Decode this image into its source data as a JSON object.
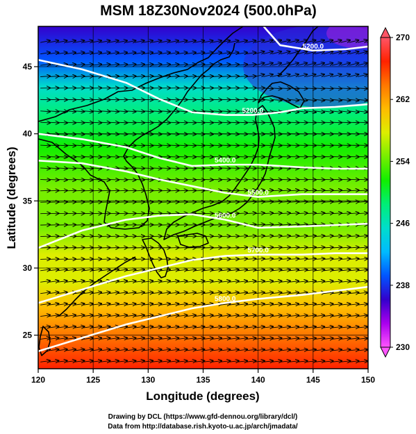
{
  "title": "MSM 18Z30Nov2024 (500.0hPa)",
  "credits": {
    "line1": "Drawing by DCL (https://www.gfd-dennou.org/library/dcl/)",
    "line2": "Data from http://database.rish.kyoto-u.ac.jp/arch/jmadata/"
  },
  "chart_data": {
    "type": "heatmap",
    "title": "MSM 18Z30Nov2024 (500.0hPa)",
    "xlabel": "Longitude (degrees)",
    "ylabel": "Latitude  (degrees)",
    "xlim": [
      120,
      150
    ],
    "ylim": [
      22.5,
      48
    ],
    "x_ticks": [
      "120",
      "125",
      "130",
      "135",
      "140",
      "145",
      "150"
    ],
    "y_ticks": [
      "25",
      "30",
      "35",
      "40",
      "45"
    ],
    "x_tick_values": [
      120,
      125,
      130,
      135,
      140,
      145,
      150
    ],
    "y_tick_values": [
      25,
      30,
      35,
      40,
      45
    ],
    "grid": true,
    "colorbar": {
      "min": 230,
      "max": 270,
      "tick_values": [
        230,
        238,
        246,
        254,
        262,
        270
      ],
      "tick_labels": [
        "230",
        "238",
        "246",
        "254",
        "262",
        "270"
      ],
      "colors": [
        "#ff55ff",
        "#aa00ee",
        "#3300cc",
        "#0055ff",
        "#00bbff",
        "#00ddcc",
        "#00ee77",
        "#11ee00",
        "#77ee00",
        "#ddee00",
        "#ffbb00",
        "#ff7700",
        "#ff2200",
        "#ff5566"
      ]
    },
    "temperature_profile": [
      {
        "lat": 22.5,
        "value": 266
      },
      {
        "lat": 25,
        "value": 264
      },
      {
        "lat": 27,
        "value": 262
      },
      {
        "lat": 29,
        "value": 259
      },
      {
        "lat": 31,
        "value": 257
      },
      {
        "lat": 33,
        "value": 255
      },
      {
        "lat": 36,
        "value": 253.5
      },
      {
        "lat": 39,
        "value": 251.5
      },
      {
        "lat": 41.5,
        "value": 248
      },
      {
        "lat": 43.5,
        "value": 244
      },
      {
        "lat": 45.5,
        "value": 240
      },
      {
        "lat": 48,
        "value": 237
      }
    ],
    "height_contours": [
      {
        "label": "5200.0",
        "points": [
          [
            140.5,
            48
          ],
          [
            142,
            46.6
          ],
          [
            145,
            46.2
          ],
          [
            148,
            46.3
          ],
          [
            150,
            46.5
          ]
        ]
      },
      {
        "label": "5200.0",
        "points": [
          [
            120,
            45.5
          ],
          [
            124,
            44.8
          ],
          [
            128,
            43.8
          ],
          [
            131,
            42.6
          ],
          [
            134,
            41.6
          ],
          [
            137,
            41.4
          ],
          [
            139.5,
            41.4
          ],
          [
            142,
            41.6
          ],
          [
            144,
            41.9
          ],
          [
            147,
            42.0
          ],
          [
            150,
            42.2
          ]
        ]
      },
      {
        "label": "5400.0",
        "points": [
          [
            120,
            40.0
          ],
          [
            124,
            39.6
          ],
          [
            128,
            39.0
          ],
          [
            131,
            38.2
          ],
          [
            134,
            37.6
          ],
          [
            137,
            37.7
          ],
          [
            140,
            37.7
          ],
          [
            144,
            37.5
          ],
          [
            147,
            37.4
          ],
          [
            150,
            37.4
          ]
        ]
      },
      {
        "label": "5500.0",
        "points": [
          [
            120,
            38.0
          ],
          [
            124,
            37.8
          ],
          [
            128,
            37.2
          ],
          [
            131,
            36.6
          ],
          [
            134,
            36.1
          ],
          [
            137,
            35.6
          ],
          [
            140,
            35.3
          ],
          [
            144,
            35.5
          ],
          [
            147,
            35.5
          ],
          [
            150,
            35.5
          ]
        ]
      },
      {
        "label": "5600.0",
        "points": [
          [
            120,
            31.5
          ],
          [
            124,
            32.8
          ],
          [
            128,
            33.6
          ],
          [
            131,
            33.9
          ],
          [
            134,
            34.0
          ],
          [
            137,
            33.6
          ],
          [
            140,
            33.0
          ],
          [
            144,
            33.1
          ],
          [
            147,
            33.2
          ],
          [
            150,
            33.3
          ]
        ]
      },
      {
        "label": "5700.0",
        "points": [
          [
            120,
            27.4
          ],
          [
            124,
            28.4
          ],
          [
            128,
            29.4
          ],
          [
            131,
            30.0
          ],
          [
            134,
            30.6
          ],
          [
            137,
            30.9
          ],
          [
            140,
            31.0
          ],
          [
            144,
            31.0
          ],
          [
            147,
            31.1
          ],
          [
            150,
            31.1
          ]
        ]
      },
      {
        "label": "5800.0",
        "points": [
          [
            120,
            23.8
          ],
          [
            124,
            24.8
          ],
          [
            128,
            25.8
          ],
          [
            131,
            26.4
          ],
          [
            134,
            27.0
          ],
          [
            137,
            27.4
          ],
          [
            140,
            27.7
          ],
          [
            144,
            28.0
          ],
          [
            147,
            28.3
          ],
          [
            150,
            28.6
          ]
        ]
      }
    ]
  }
}
